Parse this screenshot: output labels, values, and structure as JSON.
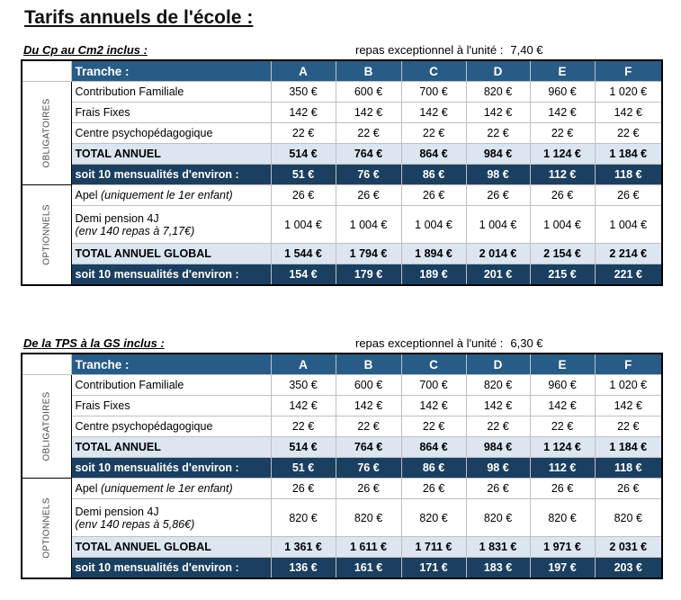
{
  "title": "Tarifs annuels de l'école :",
  "sections": [
    {
      "heading": "Du Cp au Cm2 inclus :",
      "meal_label": "repas exceptionnel à l'unité :",
      "meal_price": "7,40 €",
      "table": {
        "header": [
          "Tranche :",
          "A",
          "B",
          "C",
          "D",
          "E",
          "F"
        ],
        "groups": [
          {
            "label": "OBLIGATOIRES",
            "rows": [
              {
                "label": "Contribution Familiale",
                "values": [
                  "350 €",
                  "600 €",
                  "700 €",
                  "820 €",
                  "960 €",
                  "1 020 €"
                ]
              },
              {
                "label": "Frais Fixes",
                "values": [
                  "142 €",
                  "142 €",
                  "142 €",
                  "142 €",
                  "142 €",
                  "142 €"
                ]
              },
              {
                "label": "Centre psychopédagogique",
                "values": [
                  "22 €",
                  "22 €",
                  "22 €",
                  "22 €",
                  "22 €",
                  "22 €"
                ]
              },
              {
                "label": "TOTAL  ANNUEL",
                "style": "total",
                "values": [
                  "514 €",
                  "764 €",
                  "864 €",
                  "984 €",
                  "1 124 €",
                  "1 184 €"
                ]
              },
              {
                "label": "soit 10 mensualités d'environ :",
                "style": "monthly",
                "values": [
                  "51 €",
                  "76 €",
                  "86 €",
                  "98 €",
                  "112 €",
                  "118 €"
                ]
              }
            ]
          },
          {
            "label": "OPTIONNELS",
            "rows": [
              {
                "label": "Apel",
                "note": "(uniquement le  1er enfant)",
                "values": [
                  "26 €",
                  "26 €",
                  "26 €",
                  "26 €",
                  "26 €",
                  "26 €"
                ]
              },
              {
                "label_lines": [
                  "Demi pension 4J",
                  "(env 140 repas à 7,17€)"
                ],
                "values": [
                  "1 004 €",
                  "1 004 €",
                  "1 004 €",
                  "1 004 €",
                  "1 004 €",
                  "1 004 €"
                ]
              },
              {
                "label": "TOTAL ANNUEL GLOBAL",
                "style": "total",
                "values": [
                  "1 544 €",
                  "1 794 €",
                  "1 894 €",
                  "2 014 €",
                  "2 154 €",
                  "2 214 €"
                ]
              },
              {
                "label": "soit 10 mensualités d'environ :",
                "style": "monthly",
                "values": [
                  "154 €",
                  "179 €",
                  "189 €",
                  "201 €",
                  "215 €",
                  "221 €"
                ]
              }
            ]
          }
        ]
      }
    },
    {
      "heading": "De la  TPS à la GS inclus :",
      "meal_label": "repas exceptionnel à l'unité :",
      "meal_price": "6,30 €",
      "table": {
        "header": [
          "Tranche :",
          "A",
          "B",
          "C",
          "D",
          "E",
          "F"
        ],
        "groups": [
          {
            "label": "OBLIGATOIRES",
            "rows": [
              {
                "label": "Contribution Familiale",
                "values": [
                  "350 €",
                  "600 €",
                  "700 €",
                  "820 €",
                  "960 €",
                  "1 020 €"
                ]
              },
              {
                "label": "Frais Fixes",
                "values": [
                  "142 €",
                  "142 €",
                  "142 €",
                  "142 €",
                  "142 €",
                  "142 €"
                ]
              },
              {
                "label": "Centre psychopédagogique",
                "values": [
                  "22 €",
                  "22 €",
                  "22 €",
                  "22 €",
                  "22 €",
                  "22 €"
                ]
              },
              {
                "label": "TOTAL  ANNUEL",
                "style": "total",
                "values": [
                  "514 €",
                  "764 €",
                  "864 €",
                  "984 €",
                  "1 124 €",
                  "1 184 €"
                ]
              },
              {
                "label": "soit 10 mensualités d'environ :",
                "style": "monthly",
                "values": [
                  "51 €",
                  "76 €",
                  "86 €",
                  "98 €",
                  "112 €",
                  "118 €"
                ]
              }
            ]
          },
          {
            "label": "OPTIONNELS",
            "rows": [
              {
                "label": "Apel",
                "note": "(uniquement le  1er enfant)",
                "values": [
                  "26 €",
                  "26 €",
                  "26 €",
                  "26 €",
                  "26 €",
                  "26 €"
                ]
              },
              {
                "label_lines": [
                  "Demi pension 4J",
                  "(env 140 repas à 5,86€)"
                ],
                "values": [
                  "820 €",
                  "820 €",
                  "820 €",
                  "820 €",
                  "820 €",
                  "820 €"
                ]
              },
              {
                "label": "TOTAL ANNUEL GLOBAL",
                "style": "total",
                "values": [
                  "1 361 €",
                  "1 611 €",
                  "1 711 €",
                  "1 831 €",
                  "1 971 €",
                  "2 031 €"
                ]
              },
              {
                "label": "soit 10 mensualités d'environ :",
                "style": "monthly",
                "values": [
                  "136 €",
                  "161 €",
                  "171 €",
                  "183 €",
                  "197 €",
                  "203 €"
                ]
              }
            ]
          }
        ]
      }
    }
  ]
}
